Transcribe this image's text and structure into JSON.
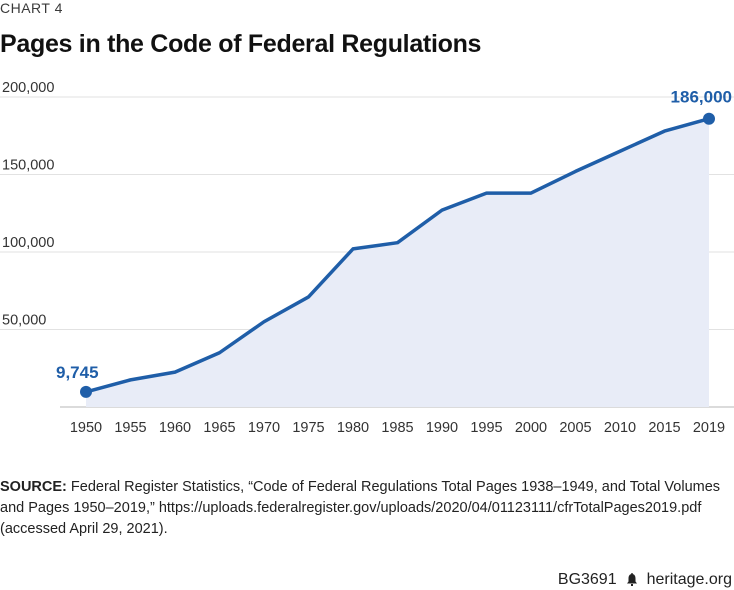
{
  "header": {
    "kicker": "CHART 4",
    "title": "Pages in the Code of Federal Regulations"
  },
  "chart_data": {
    "type": "area",
    "title": "Pages in the Code of Federal Regulations",
    "x": [
      1950,
      1955,
      1960,
      1965,
      1970,
      1975,
      1980,
      1985,
      1990,
      1995,
      2000,
      2005,
      2010,
      2015,
      2019
    ],
    "series": [
      {
        "values": [
          9745,
          17500,
          22500,
          35000,
          55000,
          71000,
          102000,
          106000,
          127000,
          138000,
          138000,
          152000,
          165000,
          178000,
          186000
        ]
      }
    ],
    "x_tick_labels": [
      "1950",
      "1955",
      "1960",
      "1965",
      "1970",
      "1975",
      "1980",
      "1985",
      "1990",
      "1995",
      "2000",
      "2005",
      "2010",
      "2015",
      "2019"
    ],
    "y_ticks": [
      50000,
      100000,
      150000,
      200000
    ],
    "y_tick_labels": [
      "50,000",
      "100,000",
      "150,000",
      "200,000"
    ],
    "ylim": [
      0,
      200000
    ],
    "grid": true,
    "annotations": [
      {
        "label": "9,745",
        "point": "first"
      },
      {
        "label": "186,000",
        "point": "last"
      }
    ],
    "colors": {
      "line": "#1f5ea8",
      "fill": "#e8ecf7",
      "grid": "#e2e2e2",
      "axis": "#cfcfcf"
    }
  },
  "source": {
    "label": "SOURCE:",
    "text": " Federal Register Statistics, “Code of Federal Regulations Total Pages 1938–1949, and Total Volumes and Pages 1950–2019,” https://uploads.federalregister.gov/uploads/2020/04/01123111/cfrTotalPages2019.pdf (accessed April 29, 2021)."
  },
  "footer": {
    "report_id": "BG3691",
    "site": "heritage.org",
    "icon": "liberty-bell-icon"
  }
}
